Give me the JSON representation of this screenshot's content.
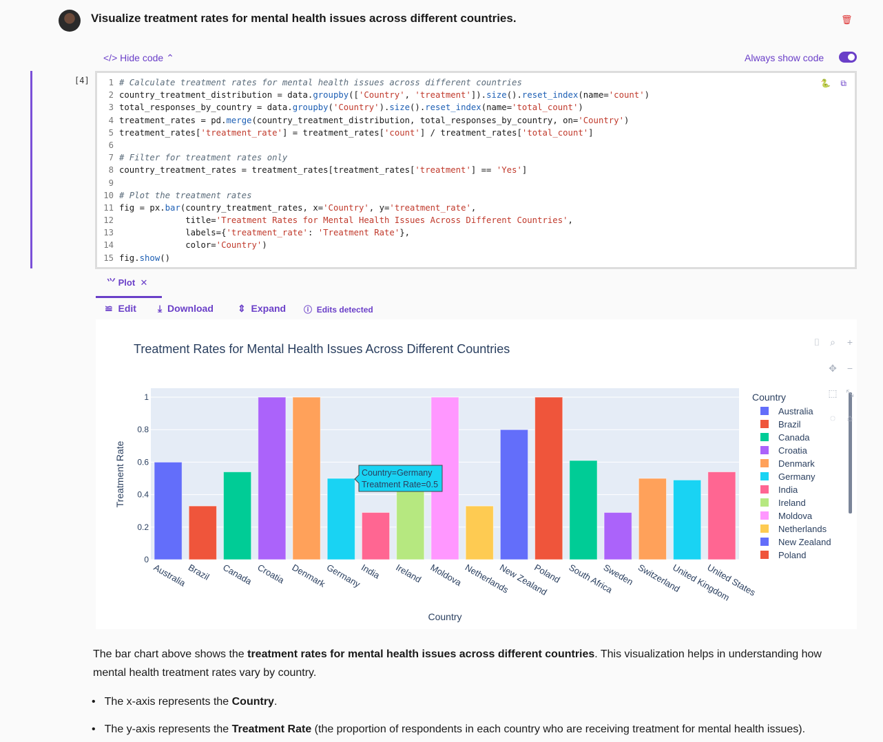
{
  "prompt": "Visualize treatment rates for mental health issues across different countries.",
  "hide_code": "Hide code",
  "always_show_code": "Always show code",
  "cell_number": "[4]",
  "code_lines": [
    "# Calculate treatment rates for mental health issues across different countries",
    "country_treatment_distribution = data.groupby(['Country', 'treatment']).size().reset_index(name='count')",
    "total_responses_by_country = data.groupby('Country').size().reset_index(name='total_count')",
    "treatment_rates = pd.merge(country_treatment_distribution, total_responses_by_country, on='Country')",
    "treatment_rates['treatment_rate'] = treatment_rates['count'] / treatment_rates['total_count']",
    "",
    "# Filter for treatment rates only",
    "country_treatment_rates = treatment_rates[treatment_rates['treatment'] == 'Yes']",
    "",
    "# Plot the treatment rates",
    "fig = px.bar(country_treatment_rates, x='Country', y='treatment_rate',",
    "             title='Treatment Rates for Mental Health Issues Across Different Countries',",
    "             labels={'treatment_rate': 'Treatment Rate'},",
    "             color='Country')",
    "fig.show()"
  ],
  "tab_plot": "Plot",
  "toolbar": {
    "edit": "Edit",
    "download": "Download",
    "expand": "Expand",
    "edits_detected": "Edits detected"
  },
  "tooltip": {
    "line1": "Country=Germany",
    "line2": "Treatment Rate=0.5"
  },
  "chart_data": {
    "type": "bar",
    "title": "Treatment Rates for Mental Health Issues Across Different Countries",
    "xlabel": "Country",
    "ylabel": "Treatment Rate",
    "ylim": [
      0,
      1
    ],
    "yticks": [
      "0",
      "0.2",
      "0.4",
      "0.6",
      "0.8",
      "1"
    ],
    "categories": [
      "Australia",
      "Brazil",
      "Canada",
      "Croatia",
      "Denmark",
      "Germany",
      "India",
      "Ireland",
      "Moldova",
      "Netherlands",
      "New Zealand",
      "Poland",
      "South Africa",
      "Sweden",
      "Switzerland",
      "United Kingdom",
      "United States"
    ],
    "values": [
      0.6,
      0.33,
      0.54,
      1,
      1,
      0.5,
      0.29,
      0.43,
      1,
      0.33,
      0.8,
      1,
      0.61,
      0.29,
      0.5,
      0.49,
      0.54
    ],
    "colors": [
      "#636efa",
      "#ef553b",
      "#00cc96",
      "#ab63fa",
      "#ffa15a",
      "#19d3f3",
      "#ff6692",
      "#b6e880",
      "#ff97ff",
      "#fecb52",
      "#636efa",
      "#ef553b",
      "#00cc96",
      "#ab63fa",
      "#ffa15a",
      "#19d3f3",
      "#ff6692"
    ],
    "legend_title": "Country",
    "legend": [
      "Australia",
      "Brazil",
      "Canada",
      "Croatia",
      "Denmark",
      "Germany",
      "India",
      "Ireland",
      "Moldova",
      "Netherlands",
      "New Zealand",
      "Poland"
    ],
    "legend_placement": "right"
  },
  "summary": {
    "p_pre": "The bar chart above shows the ",
    "p_bold": "treatment rates for mental health issues across different countries",
    "p_post": ". This visualization helps in understanding how mental health treatment rates vary by country.",
    "b1_pre": "The x-axis represents the ",
    "b1_bold": "Country",
    "b1_post": ".",
    "b2_pre": "The y-axis represents the ",
    "b2_bold": "Treatment Rate",
    "b2_post": " (the proportion of respondents in each country who are receiving treatment for mental health issues)."
  }
}
